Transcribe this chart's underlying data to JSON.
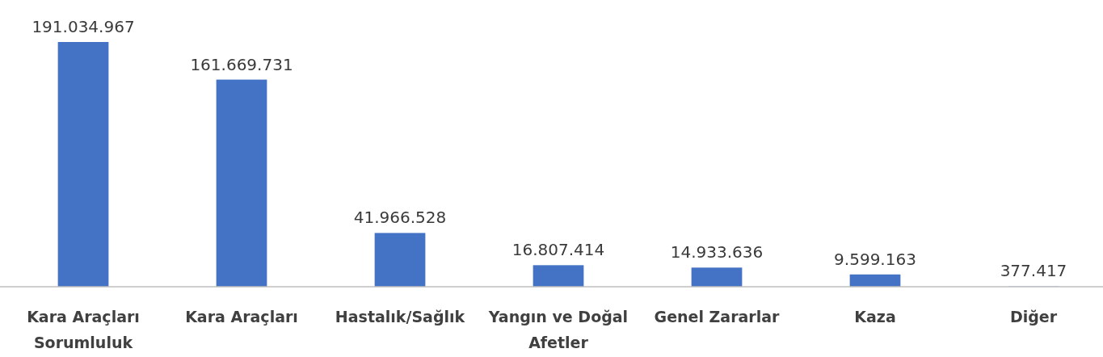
{
  "chart_data": {
    "type": "bar",
    "categories": [
      "Kara Araçları Sorumluluk",
      "Kara Araçları",
      "Hastalık/Sağlık",
      "Yangın ve Doğal Afetler",
      "Genel Zararlar",
      "Kaza",
      "Diğer"
    ],
    "values": [
      191034967,
      161669731,
      41966528,
      16807414,
      14933636,
      9599163,
      377417
    ],
    "value_labels": [
      "191.034.967",
      "161.669.731",
      "41.966.528",
      "16.807.414",
      "14.933.636",
      "9.599.163",
      "377.417"
    ],
    "colors": [
      "#4472c4",
      "#4472c4",
      "#4472c4",
      "#4472c4",
      "#4472c4",
      "#4472c4",
      "#8faadc"
    ]
  }
}
